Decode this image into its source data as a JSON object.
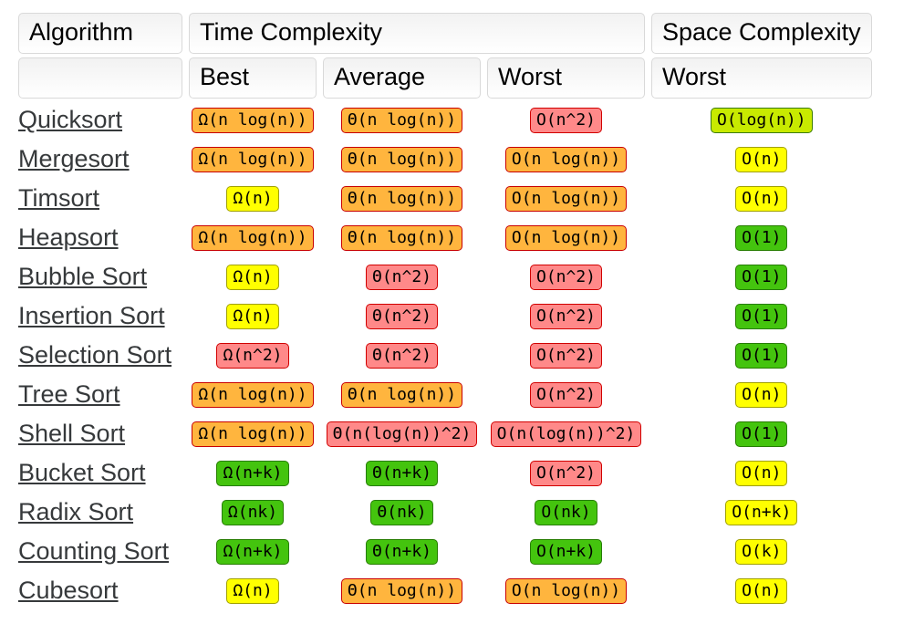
{
  "colors": {
    "green": {
      "bg": "#44c40e",
      "border": "#267d00"
    },
    "yellowgreen": {
      "bg": "#c8ea00",
      "border": "#3b7c00"
    },
    "yellow": {
      "bg": "#ffff00",
      "border": "#a0a000"
    },
    "orange": {
      "bg": "#ffb53e",
      "border": "#c80000"
    },
    "red": {
      "bg": "#ff8989",
      "border": "#d10000"
    }
  },
  "header": {
    "algorithm": "Algorithm",
    "time_complexity": "Time Complexity",
    "space_complexity": "Space Complexity",
    "best": "Best",
    "average": "Average",
    "worst_time": "Worst",
    "worst_space": "Worst"
  },
  "columns": [
    "best",
    "average",
    "worst",
    "space_worst"
  ],
  "rows": [
    {
      "name": "Quicksort",
      "best": {
        "text": "Ω(n log(n))",
        "level": "orange"
      },
      "average": {
        "text": "Θ(n log(n))",
        "level": "orange"
      },
      "worst": {
        "text": "O(n^2)",
        "level": "red"
      },
      "space_worst": {
        "text": "O(log(n))",
        "level": "yellowgreen"
      }
    },
    {
      "name": "Mergesort",
      "best": {
        "text": "Ω(n log(n))",
        "level": "orange"
      },
      "average": {
        "text": "Θ(n log(n))",
        "level": "orange"
      },
      "worst": {
        "text": "O(n log(n))",
        "level": "orange"
      },
      "space_worst": {
        "text": "O(n)",
        "level": "yellow"
      }
    },
    {
      "name": "Timsort",
      "best": {
        "text": "Ω(n)",
        "level": "yellow"
      },
      "average": {
        "text": "Θ(n log(n))",
        "level": "orange"
      },
      "worst": {
        "text": "O(n log(n))",
        "level": "orange"
      },
      "space_worst": {
        "text": "O(n)",
        "level": "yellow"
      }
    },
    {
      "name": "Heapsort",
      "best": {
        "text": "Ω(n log(n))",
        "level": "orange"
      },
      "average": {
        "text": "Θ(n log(n))",
        "level": "orange"
      },
      "worst": {
        "text": "O(n log(n))",
        "level": "orange"
      },
      "space_worst": {
        "text": "O(1)",
        "level": "green"
      }
    },
    {
      "name": "Bubble Sort",
      "best": {
        "text": "Ω(n)",
        "level": "yellow"
      },
      "average": {
        "text": "Θ(n^2)",
        "level": "red"
      },
      "worst": {
        "text": "O(n^2)",
        "level": "red"
      },
      "space_worst": {
        "text": "O(1)",
        "level": "green"
      }
    },
    {
      "name": "Insertion Sort",
      "best": {
        "text": "Ω(n)",
        "level": "yellow"
      },
      "average": {
        "text": "Θ(n^2)",
        "level": "red"
      },
      "worst": {
        "text": "O(n^2)",
        "level": "red"
      },
      "space_worst": {
        "text": "O(1)",
        "level": "green"
      }
    },
    {
      "name": "Selection Sort",
      "best": {
        "text": "Ω(n^2)",
        "level": "red"
      },
      "average": {
        "text": "Θ(n^2)",
        "level": "red"
      },
      "worst": {
        "text": "O(n^2)",
        "level": "red"
      },
      "space_worst": {
        "text": "O(1)",
        "level": "green"
      }
    },
    {
      "name": "Tree Sort",
      "best": {
        "text": "Ω(n log(n))",
        "level": "orange"
      },
      "average": {
        "text": "Θ(n log(n))",
        "level": "orange"
      },
      "worst": {
        "text": "O(n^2)",
        "level": "red"
      },
      "space_worst": {
        "text": "O(n)",
        "level": "yellow"
      }
    },
    {
      "name": "Shell Sort",
      "best": {
        "text": "Ω(n log(n))",
        "level": "orange"
      },
      "average": {
        "text": "Θ(n(log(n))^2)",
        "level": "red"
      },
      "worst": {
        "text": "O(n(log(n))^2)",
        "level": "red"
      },
      "space_worst": {
        "text": "O(1)",
        "level": "green"
      }
    },
    {
      "name": "Bucket Sort",
      "best": {
        "text": "Ω(n+k)",
        "level": "green"
      },
      "average": {
        "text": "Θ(n+k)",
        "level": "green"
      },
      "worst": {
        "text": "O(n^2)",
        "level": "red"
      },
      "space_worst": {
        "text": "O(n)",
        "level": "yellow"
      }
    },
    {
      "name": "Radix Sort",
      "best": {
        "text": "Ω(nk)",
        "level": "green"
      },
      "average": {
        "text": "Θ(nk)",
        "level": "green"
      },
      "worst": {
        "text": "O(nk)",
        "level": "green"
      },
      "space_worst": {
        "text": "O(n+k)",
        "level": "yellow"
      }
    },
    {
      "name": "Counting Sort",
      "best": {
        "text": "Ω(n+k)",
        "level": "green"
      },
      "average": {
        "text": "Θ(n+k)",
        "level": "green"
      },
      "worst": {
        "text": "O(n+k)",
        "level": "green"
      },
      "space_worst": {
        "text": "O(k)",
        "level": "yellow"
      }
    },
    {
      "name": "Cubesort",
      "best": {
        "text": "Ω(n)",
        "level": "yellow"
      },
      "average": {
        "text": "Θ(n log(n))",
        "level": "orange"
      },
      "worst": {
        "text": "O(n log(n))",
        "level": "orange"
      },
      "space_worst": {
        "text": "O(n)",
        "level": "yellow"
      }
    }
  ]
}
